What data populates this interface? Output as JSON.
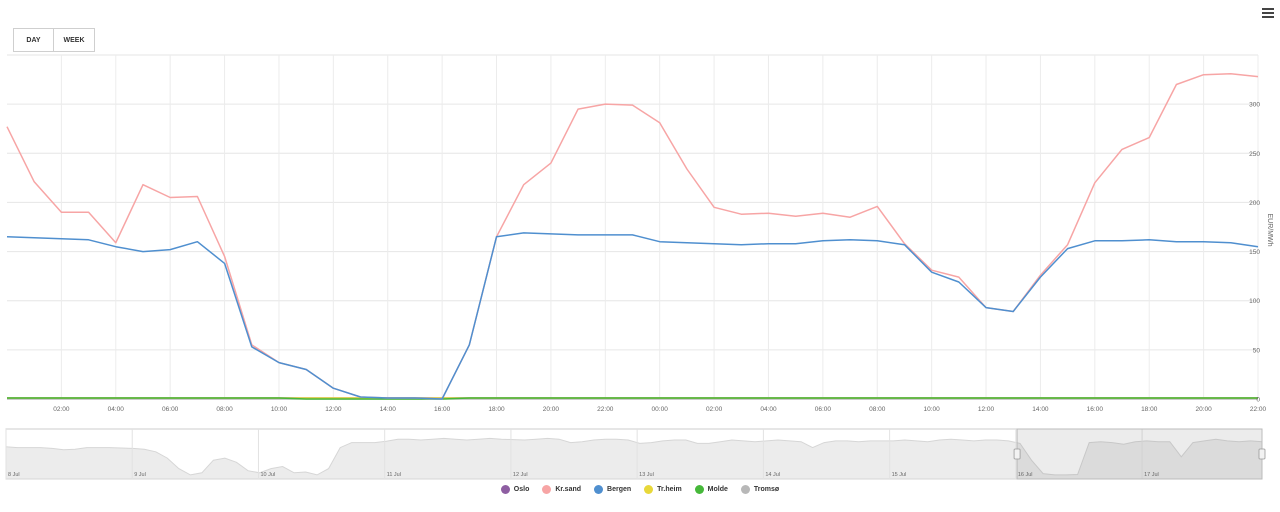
{
  "controls": {
    "day_label": "DAY",
    "week_label": "WEEK"
  },
  "chart_data": {
    "type": "line",
    "ylabel": "EUR/MWh",
    "ylim": [
      0,
      350
    ],
    "yticks": [
      0,
      50,
      100,
      150,
      200,
      250,
      300
    ],
    "x_tick_labels": [
      "02:00",
      "04:00",
      "06:00",
      "08:00",
      "10:00",
      "12:00",
      "14:00",
      "16:00",
      "18:00",
      "20:00",
      "22:00",
      "00:00",
      "02:00",
      "04:00",
      "06:00",
      "08:00",
      "10:00",
      "12:00",
      "14:00",
      "16:00",
      "18:00",
      "20:00",
      "22:00"
    ],
    "x_hours": [
      0,
      1,
      2,
      3,
      4,
      5,
      6,
      7,
      8,
      9,
      10,
      11,
      12,
      13,
      14,
      15,
      16,
      17,
      18,
      19,
      20,
      21,
      22,
      23,
      24,
      25,
      26,
      27,
      28,
      29,
      30,
      31,
      32,
      33,
      34,
      35,
      36,
      37,
      38,
      39,
      40,
      41,
      42,
      43,
      44,
      45,
      46
    ],
    "series": [
      {
        "name": "Oslo",
        "color": "#8e5ea2",
        "values": [
          1,
          1,
          1,
          1,
          1,
          1,
          1,
          1,
          1,
          1,
          1,
          1,
          1,
          1,
          1,
          1,
          1,
          1,
          1,
          1,
          1,
          1,
          1,
          1,
          1,
          1,
          1,
          1,
          1,
          1,
          1,
          1,
          1,
          1,
          1,
          1,
          1,
          1,
          1,
          1,
          1,
          1,
          1,
          1,
          1,
          1,
          1
        ]
      },
      {
        "name": "Kr.sand",
        "color": "#f7a5a5",
        "values": [
          277,
          221,
          190,
          190,
          159,
          218,
          205,
          206,
          145,
          55,
          37,
          30,
          11,
          2,
          1,
          1,
          0,
          55,
          165,
          218,
          240,
          295,
          300,
          299,
          281,
          234,
          195,
          188,
          189,
          186,
          189,
          185,
          196,
          158,
          131,
          124,
          93,
          89,
          126,
          157,
          220,
          254,
          266,
          320,
          330,
          331,
          328
        ]
      },
      {
        "name": "Bergen",
        "color": "#4f8fcf",
        "values": [
          165,
          164,
          163,
          162,
          155,
          150,
          152,
          160,
          138,
          53,
          37,
          30,
          11,
          2,
          1,
          1,
          0,
          55,
          165,
          169,
          168,
          167,
          167,
          167,
          160,
          159,
          158,
          157,
          158,
          158,
          161,
          162,
          161,
          157,
          129,
          119,
          93,
          89,
          124,
          153,
          161,
          161,
          162,
          160,
          160,
          159,
          155
        ]
      },
      {
        "name": "Tr.heim",
        "color": "#e8d83a",
        "values": [
          1,
          1,
          1,
          1,
          1,
          1,
          1,
          1,
          1,
          1,
          1,
          1,
          1,
          1,
          1,
          1,
          1,
          1,
          1,
          1,
          1,
          1,
          1,
          1,
          1,
          1,
          1,
          1,
          1,
          1,
          1,
          1,
          1,
          1,
          1,
          1,
          1,
          1,
          1,
          1,
          1,
          1,
          1,
          1,
          1,
          1,
          1
        ]
      },
      {
        "name": "Molde",
        "color": "#46b83a",
        "values": [
          1,
          1,
          1,
          1,
          1,
          1,
          1,
          1,
          1,
          1,
          1,
          0,
          0,
          0,
          0,
          0,
          0,
          1,
          1,
          1,
          1,
          1,
          1,
          1,
          1,
          1,
          1,
          1,
          1,
          1,
          1,
          1,
          1,
          1,
          1,
          1,
          1,
          1,
          1,
          1,
          1,
          1,
          1,
          1,
          1,
          1,
          1
        ]
      },
      {
        "name": "Tromsø",
        "color": "#b8b8b8",
        "values": [
          0,
          0,
          0,
          0,
          0,
          0,
          0,
          0,
          0,
          0,
          0,
          0,
          0,
          0,
          0,
          0,
          0,
          0,
          0,
          0,
          0,
          0,
          0,
          0,
          0,
          0,
          0,
          0,
          0,
          0,
          0,
          0,
          0,
          0,
          0,
          0,
          0,
          0,
          0,
          0,
          0,
          0,
          0,
          0,
          0,
          0,
          0
        ]
      }
    ],
    "navigator": {
      "labels": [
        "8 Jul",
        "9 Jul",
        "10 Jul",
        "11 Jul",
        "12 Jul",
        "13 Jul",
        "14 Jul",
        "15 Jul",
        "16 Jul",
        "17 Jul"
      ],
      "overview": [
        0.72,
        0.7,
        0.7,
        0.7,
        0.68,
        0.65,
        0.66,
        0.7,
        0.7,
        0.7,
        0.69,
        0.68,
        0.66,
        0.6,
        0.45,
        0.2,
        0.05,
        0.1,
        0.4,
        0.45,
        0.35,
        0.15,
        0.1,
        0.2,
        0.25,
        0.1,
        0.12,
        0.05,
        0.2,
        0.7,
        0.82,
        0.82,
        0.82,
        0.85,
        0.9,
        0.9,
        0.88,
        0.9,
        0.92,
        0.9,
        0.88,
        0.9,
        0.92,
        0.9,
        0.89,
        0.88,
        0.9,
        0.92,
        0.9,
        0.82,
        0.84,
        0.88,
        0.9,
        0.9,
        0.88,
        0.8,
        0.82,
        0.86,
        0.88,
        0.88,
        0.8,
        0.8,
        0.84,
        0.88,
        0.86,
        0.84,
        0.86,
        0.88,
        0.86,
        0.84,
        0.7,
        0.82,
        0.86,
        0.86,
        0.84,
        0.86,
        0.86,
        0.86,
        0.88,
        0.86,
        0.84,
        0.88,
        0.9,
        0.88,
        0.86,
        0.88,
        0.88,
        0.86,
        0.8,
        0.4,
        0.08,
        0.05,
        0.05,
        0.06,
        0.82,
        0.84,
        0.82,
        0.78,
        0.84,
        0.86,
        0.84,
        0.84,
        0.48,
        0.82,
        0.86,
        0.9,
        0.86,
        0.84,
        0.86,
        0.84
      ],
      "selection_start_fraction": 0.805,
      "selection_end_fraction": 1.0
    },
    "grid": true,
    "legend_position": "bottom-center"
  }
}
